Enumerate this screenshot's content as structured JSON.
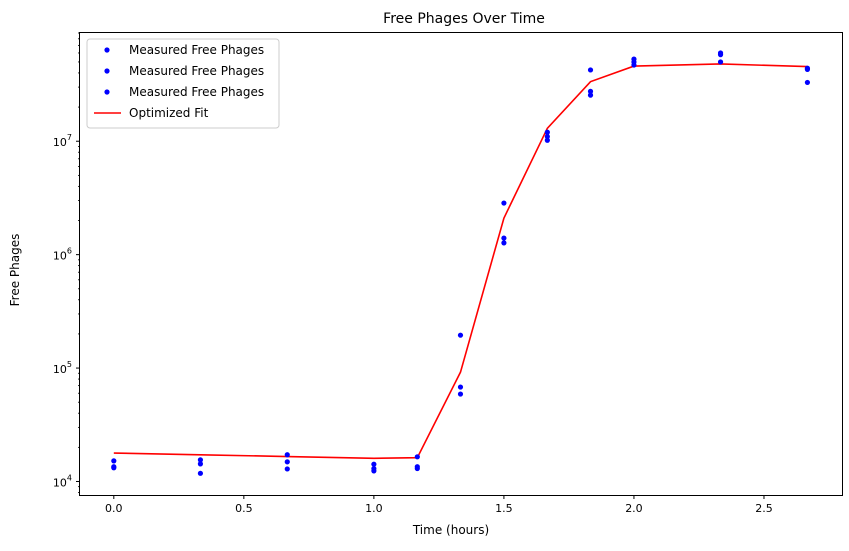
{
  "chart_data": {
    "type": "scatter",
    "title": "Free Phages Over Time",
    "xlabel": "Time (hours)",
    "ylabel": "Free Phages",
    "xlim": [
      -0.13,
      2.8
    ],
    "ylim": [
      7600,
      90000000
    ],
    "yscale": "log",
    "grid": false,
    "legend_position": "top-left",
    "x_ticks": [
      0.0,
      0.5,
      1.0,
      1.5,
      2.0,
      2.5
    ],
    "x_tick_labels": [
      "0.0",
      "0.5",
      "1.0",
      "1.5",
      "2.0",
      "2.5"
    ],
    "y_ticks": [
      10000,
      100000,
      1000000,
      10000000
    ],
    "y_tick_labels": [
      {
        "base": "10",
        "exp": "4"
      },
      {
        "base": "10",
        "exp": "5"
      },
      {
        "base": "10",
        "exp": "6"
      },
      {
        "base": "10",
        "exp": "7"
      }
    ],
    "series": [
      {
        "name": "Measured Free Phages",
        "style": "points",
        "color": "#0000ff",
        "x": [
          0.0,
          0.333,
          0.667,
          1.0,
          1.167,
          1.333,
          1.5,
          1.667,
          1.833,
          2.0,
          2.333,
          2.667
        ],
        "y": [
          15200,
          15500,
          17200,
          14200,
          16500,
          195000,
          2850000,
          12000000,
          42500000,
          53000000,
          60000000,
          44000000
        ]
      },
      {
        "name": "Measured Free Phages",
        "style": "points",
        "color": "#0000ff",
        "x": [
          0.0,
          0.333,
          0.667,
          1.0,
          1.167,
          1.333,
          1.5,
          1.667,
          1.833,
          2.0,
          2.333,
          2.667
        ],
        "y": [
          13500,
          14300,
          14900,
          13000,
          13500,
          68000,
          1400000,
          11000000,
          27500000,
          50000000,
          58000000,
          43000000
        ]
      },
      {
        "name": "Measured Free Phages",
        "style": "points",
        "color": "#0000ff",
        "x": [
          0.0,
          0.333,
          0.667,
          1.0,
          1.167,
          1.333,
          1.5,
          1.667,
          1.833,
          2.0,
          2.333,
          2.667
        ],
        "y": [
          13200,
          11800,
          12900,
          12400,
          13000,
          59000,
          1270000,
          10200000,
          25500000,
          47000000,
          50000000,
          33000000
        ]
      },
      {
        "name": "Optimized Fit",
        "style": "line",
        "color": "#ff0000",
        "x": [
          0.0,
          0.333,
          0.667,
          1.0,
          1.167,
          1.333,
          1.5,
          1.667,
          1.833,
          2.0,
          2.333,
          2.667
        ],
        "y": [
          17800,
          17200,
          16600,
          16000,
          16200,
          92000,
          2100000,
          13000000,
          33500000,
          46000000,
          48000000,
          45500000
        ]
      }
    ]
  }
}
